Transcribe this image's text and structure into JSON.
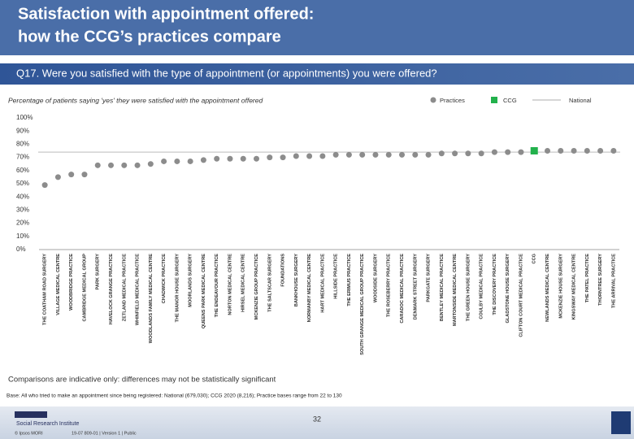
{
  "header": {
    "title_line1": "Satisfaction with appointment offered:",
    "title_line2": "how the CCG’s practices compare",
    "question": "Q17. Were you satisfied with the type of appointment (or appointments) you were offered?"
  },
  "chart_data": {
    "type": "dot",
    "subtitle": "Percentage of patients saying 'yes' they were satisfied with the appointment offered",
    "categories": [
      "THE COATHAM ROAD SURGERY",
      "VILLAGE MEDICAL CENTRE",
      "WOODBRIDGE PRACTICE",
      "CAMBRIDGE MEDICAL GROUP",
      "PARK SURGERY",
      "HAVELOCK GRANGE PRACTICE",
      "ZETLAND MEDICAL PRACTICE",
      "WHINFIELD MEDICAL PRACTICE",
      "WOODLANDS FAMILY MEDICAL CENTRE",
      "CHADWICK PRACTICE",
      "THE MANOR HOUSE SURGERY",
      "MOORLANDS SURGERY",
      "QUEENS PARK MEDICAL CENTRE",
      "THE ENDEAVOUR PRACTICE",
      "NORTON MEDICAL CENTRE",
      "HIRSEL MEDICAL CENTRE",
      "MCKENZIE GROUP PRACTICE",
      "THE SALTSCAR SURGERY",
      "FOUNDATIONS",
      "BANKHOUSE SURGERY",
      "NORMANBY MEDICAL CENTRE",
      "HART MEDICAL PRACTICE",
      "HILLSIDE PRACTICE",
      "THE ERIMUS PRACTICE",
      "SOUTH GRANGE MEDICAL GROUP PRACTICE",
      "WOODSIDE SURGERY",
      "THE ROSEBERRY PRACTICE",
      "CARADOC MEDICAL PRACTICE",
      "DENMARK STREET SURGERY",
      "PARKGATE SURGERY",
      "BENTLEY MEDICAL PRACTICE",
      "MARTONSIDE MEDICAL CENTRE",
      "THE GREEN HOUSE SURGERY",
      "COULBY MEDICAL PRACTICE",
      "THE DISCOVERY PRACTICE",
      "GLADSTONE HOUSE SURGERY",
      "CLIFTON COURT MEDICAL PRACTICE",
      "CCG",
      "NEWLANDS MEDICAL CENTRE",
      "MCKENZIE HOUSE SURGERY",
      "KINGSWAY MEDICAL CENTRE",
      "THE PATEL PRACTICE",
      "THORNTREE SURGERY",
      "THE ARRIVAL PRACTICE"
    ],
    "series": [
      {
        "name": "Practices",
        "color": "#8c8c8c",
        "values": [
          49,
          55,
          57,
          57,
          64,
          64,
          64,
          64,
          65,
          67,
          67,
          67,
          68,
          69,
          69,
          69,
          69,
          70,
          70,
          71,
          71,
          71,
          72,
          72,
          72,
          72,
          72,
          72,
          72,
          72,
          73,
          73,
          73,
          73,
          74,
          74,
          74,
          null,
          75,
          75,
          75,
          75,
          75,
          75
        ]
      },
      {
        "name": "CCG",
        "color": "#22b14c",
        "values": [
          null,
          null,
          null,
          null,
          null,
          null,
          null,
          null,
          null,
          null,
          null,
          null,
          null,
          null,
          null,
          null,
          null,
          null,
          null,
          null,
          null,
          null,
          null,
          null,
          null,
          null,
          null,
          null,
          null,
          null,
          null,
          null,
          null,
          null,
          null,
          null,
          null,
          75,
          null,
          null,
          null,
          null,
          null,
          null
        ]
      }
    ],
    "national": {
      "name": "National",
      "color": "#c8c8c8",
      "value": 74
    },
    "ylim": [
      0,
      100
    ],
    "yticks": [
      {
        "value": 0,
        "label": "0%"
      },
      {
        "value": 10,
        "label": "10%"
      },
      {
        "value": 20,
        "label": "20%"
      },
      {
        "value": 30,
        "label": "30%"
      },
      {
        "value": 40,
        "label": "40%"
      },
      {
        "value": 50,
        "label": "50%"
      },
      {
        "value": 60,
        "label": "60%"
      },
      {
        "value": 70,
        "label": "70%"
      },
      {
        "value": 80,
        "label": "80%"
      },
      {
        "value": 90,
        "label": "90%"
      },
      {
        "value": 100,
        "label": "100%"
      }
    ],
    "grid": false
  },
  "footer": {
    "note": "Comparisons are indicative only: differences may not be statistically significant",
    "base": "Base: All who tried to make an appointment since being registered: National (679,030); CCG 2020 (8,216); Practice bases range from 22 to 130",
    "logo_line1": "Ipsos MORI",
    "logo_line2": "Social Research Institute",
    "copyright": "© Ipsos MORI",
    "job": "19-07 809-01 | Version 1 | Public",
    "page_number": "32"
  }
}
